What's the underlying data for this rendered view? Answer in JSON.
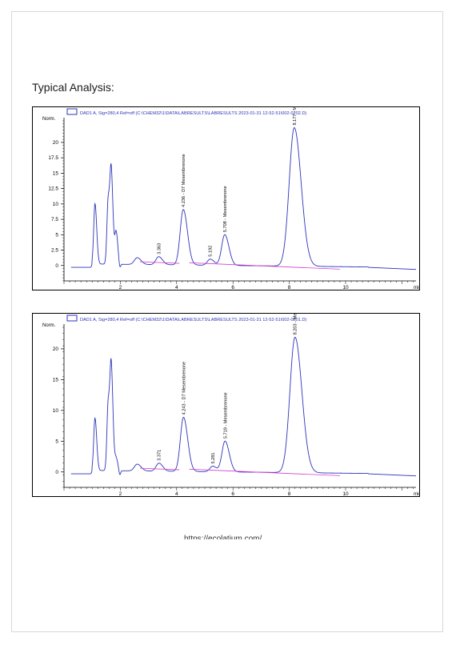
{
  "heading": "Typical Analysis:",
  "footer_url": "https://ecolatium.com/",
  "colors": {
    "trace": "#2b34b8",
    "baseline": "#d23fd0",
    "axis": "#000000",
    "frame": "#000000"
  },
  "chart_data": [
    {
      "type": "line",
      "header": "DAD1 A, Sig=280,4 Ref=off (C:\\CHEM32\\1\\DATA\\LABRESULTS\\LABRESULTS 2023-01-31 12-52-51\\002-0202.D)",
      "ylabel": "Norm.",
      "xunit": "min",
      "xlim": [
        0,
        12.5
      ],
      "ylim": [
        -2.5,
        23.5
      ],
      "xticks": [
        2,
        4,
        6,
        8,
        10
      ],
      "yticks": [
        0,
        2.5,
        5,
        7.5,
        10,
        12.5,
        15,
        17.5,
        20
      ],
      "ytick_labels": [
        "0",
        "2.5",
        "5",
        "7.5",
        "10",
        "12.5",
        "15",
        "17.5",
        "20"
      ],
      "peaks": [
        {
          "rt": 1.1,
          "height": 9.8,
          "label": ""
        },
        {
          "rt": 1.57,
          "height": 10.5,
          "label": ""
        },
        {
          "rt": 1.68,
          "height": 14.0,
          "label": ""
        },
        {
          "rt": 1.85,
          "height": 5.2,
          "label": ""
        },
        {
          "rt": 2.6,
          "height": 1.1,
          "label": ""
        },
        {
          "rt": 3.363,
          "height": 1.3,
          "label": "3.363"
        },
        {
          "rt": 4.236,
          "height": 9.0,
          "label": "4.236 - D7 Mesembrenone"
        },
        {
          "rt": 5.192,
          "height": 1.0,
          "label": "5.192"
        },
        {
          "rt": 5.708,
          "height": 5.0,
          "label": "5.708 - Mesembrenone"
        },
        {
          "rt": 8.177,
          "height": 22.5,
          "label": "8.177 - Mesembrine"
        }
      ]
    },
    {
      "type": "line",
      "header": "DAD1 A, Sig=280,4 Ref=off (C:\\CHEM32\\1\\DATA\\LABRESULTS\\LABRESULTS 2023-01-31 12-52-51\\002-0201.D)",
      "ylabel": "Norm.",
      "xunit": "min",
      "xlim": [
        0,
        12.5
      ],
      "ylim": [
        -2.5,
        23.5
      ],
      "xticks": [
        2,
        4,
        6,
        8,
        10
      ],
      "yticks": [
        0,
        5,
        10,
        15,
        20
      ],
      "ytick_labels": [
        "0",
        "5",
        "10",
        "15",
        "20"
      ],
      "peaks": [
        {
          "rt": 1.1,
          "height": 8.5,
          "label": ""
        },
        {
          "rt": 1.57,
          "height": 11.0,
          "label": ""
        },
        {
          "rt": 1.68,
          "height": 15.8,
          "label": ""
        },
        {
          "rt": 1.85,
          "height": 2.0,
          "label": ""
        },
        {
          "rt": 2.6,
          "height": 1.1,
          "label": ""
        },
        {
          "rt": 3.371,
          "height": 1.3,
          "label": "3.371"
        },
        {
          "rt": 4.243,
          "height": 8.8,
          "label": "4.243 - D7 Mesembrenone"
        },
        {
          "rt": 5.281,
          "height": 0.9,
          "label": "5.281"
        },
        {
          "rt": 5.719,
          "height": 5.0,
          "label": "5.719 - Mesembrenone"
        },
        {
          "rt": 8.203,
          "height": 22.0,
          "label": "8.203 - Mesembrine"
        }
      ]
    }
  ]
}
